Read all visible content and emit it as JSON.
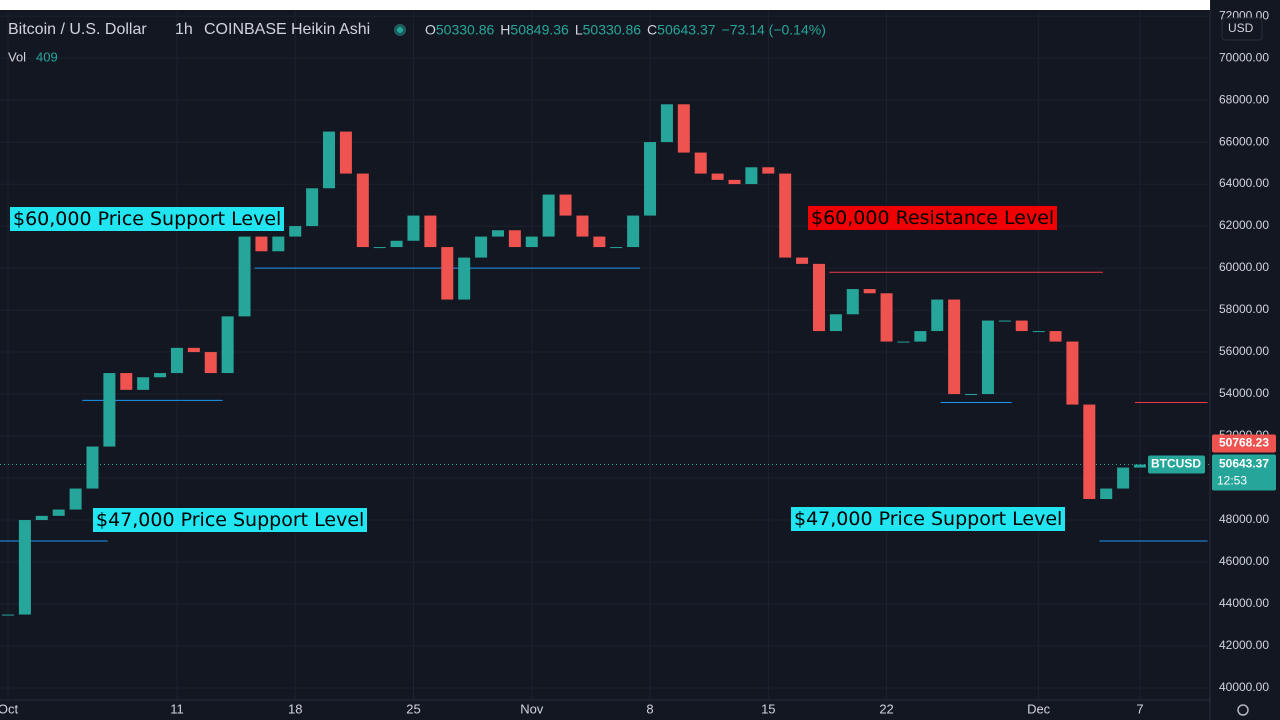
{
  "header": {
    "symbol": "Bitcoin / U.S. Dollar",
    "interval": "1h",
    "exchange": "COINBASE",
    "style": "Heikin Ashi",
    "ohlc": [
      "O",
      "50330.86",
      "H",
      "50849.36",
      "L",
      "50330.86",
      "C",
      "50643.37",
      "−73.14 (−0.14%)"
    ],
    "volume_label": "Vol",
    "volume": 409,
    "currency": "USD"
  },
  "chart_data": {
    "type": "candles",
    "up_color": "#26a69a",
    "down_color": "#ef5350",
    "categories": [
      "Oct",
      null,
      null,
      null,
      null,
      null,
      null,
      null,
      null,
      null,
      "11",
      null,
      null,
      null,
      null,
      null,
      null,
      "18",
      null,
      null,
      null,
      null,
      null,
      null,
      "25",
      null,
      null,
      null,
      null,
      null,
      null,
      "Nov",
      null,
      null,
      null,
      null,
      null,
      null,
      "8",
      null,
      null,
      null,
      null,
      null,
      null,
      "15",
      null,
      null,
      null,
      null,
      null,
      null,
      "22",
      null,
      null,
      null,
      null,
      null,
      null,
      null,
      null,
      "Dec",
      null,
      null,
      null,
      null,
      null,
      "7"
    ],
    "series": [
      {
        "name": "BTCUSD",
        "values": [
          43500,
          48000,
          48200,
          48500,
          49500,
          51500,
          55000,
          54200,
          54800,
          55000,
          56200,
          56000,
          55000,
          57700,
          61500,
          60800,
          61500,
          62000,
          63800,
          66500,
          64500,
          61000,
          61000,
          61300,
          62500,
          61000,
          58500,
          60500,
          61500,
          61800,
          61000,
          61500,
          63500,
          62500,
          61500,
          61000,
          61000,
          62500,
          66000,
          67800,
          65500,
          64500,
          64200,
          64000,
          64800,
          64500,
          60500,
          60200,
          57000,
          57800,
          59000,
          58800,
          56500,
          56500,
          57000,
          58500,
          54000,
          54000,
          57500,
          57500,
          57000,
          57000,
          56500,
          53500,
          49000,
          49500,
          50500,
          50643.37
        ]
      }
    ],
    "ylim": [
      39430,
      72290
    ],
    "yticks": [
      {
        "value": 40000,
        "label": "40000.00"
      },
      {
        "value": 42000,
        "label": "42000.00"
      },
      {
        "value": 44000,
        "label": "44000.00"
      },
      {
        "value": 46000,
        "label": "46000.00"
      },
      {
        "value": 48000,
        "label": "48000.00"
      },
      {
        "value": 50000,
        "label": "50000.00"
      },
      {
        "value": 52000,
        "label": "52000.00"
      },
      {
        "value": 54000,
        "label": "54000.00"
      },
      {
        "value": 56000,
        "label": "56000.00"
      },
      {
        "value": 58000,
        "label": "58000.00"
      },
      {
        "value": 60000,
        "label": "60000.00"
      },
      {
        "value": 62000,
        "label": "62000.00"
      },
      {
        "value": 64000,
        "label": "64000.00"
      },
      {
        "value": 66000,
        "label": "66000.00"
      },
      {
        "value": 68000,
        "label": "68000.00"
      },
      {
        "value": 70000,
        "label": "70000.00"
      },
      {
        "value": 72000,
        "label": "72000.00"
      }
    ],
    "grid": true,
    "levels": [
      {
        "value": 60000,
        "color": "#2196f3",
        "x0": 14.6,
        "x1": 37.4
      },
      {
        "value": 53700,
        "color": "#2196f3",
        "x0": 4.4,
        "x1": 12.7
      },
      {
        "value": 47000,
        "color": "#2196f3",
        "x0": -0.5,
        "x1": 5.9
      },
      {
        "value": 59800,
        "color": "#f23645",
        "x0": 48.6,
        "x1": 64.8
      },
      {
        "value": 53600,
        "color": "#2196f3",
        "x0": 55.2,
        "x1": 59.4
      },
      {
        "value": 53600,
        "color": "#f23645",
        "x0": 66.7,
        "x1": 71
      },
      {
        "value": 47000,
        "color": "#2196f3",
        "x0": 64.6,
        "x1": 71
      }
    ],
    "annotations": [
      "$60,000 Price Support Level",
      "$60,000 Resistance Level",
      "$47,000 Price Support Level",
      "$47,000 Price Support Level"
    ],
    "last_price": {
      "value": 50643.37,
      "name": "BTCUSD",
      "countdown": "12:53"
    },
    "high_marker": 50768.23
  }
}
